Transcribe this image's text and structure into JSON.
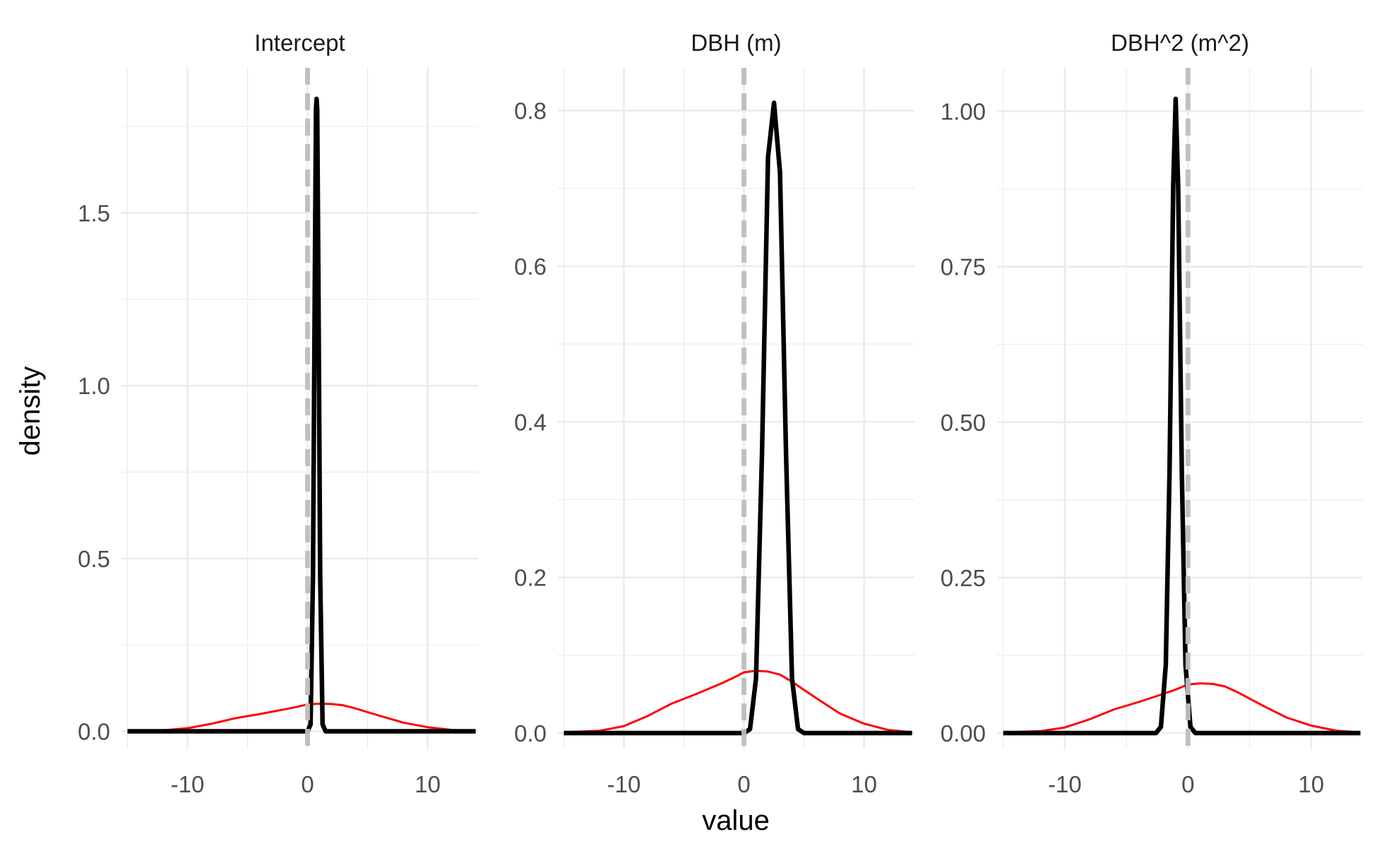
{
  "chart_data": {
    "type": "line",
    "xlabel": "value",
    "ylabel": "density",
    "colors": {
      "posterior": "#000000",
      "prior": "#ff0000",
      "reference_line": "#bebebe",
      "grid": "#ebebeb",
      "text": "#4d4d4d"
    },
    "facets": [
      {
        "title": "Intercept",
        "xlim": [
          -15.5,
          14.2
        ],
        "ylim": [
          -0.05,
          1.92
        ],
        "xticks": [
          -10,
          0,
          10
        ],
        "xtick_labels": [
          "-10",
          "0",
          "10"
        ],
        "yticks": [
          0.0,
          0.5,
          1.0,
          1.5
        ],
        "ytick_labels": [
          "0.0",
          "0.5",
          "1.0",
          "1.5"
        ],
        "vline": 0,
        "series": [
          {
            "role": "posterior",
            "x": [
              -15,
              0.0,
              0.25,
              0.45,
              0.6,
              0.7,
              0.75,
              0.8,
              0.9,
              1.05,
              1.25,
              1.5,
              14
            ],
            "y": [
              0,
              0,
              0.02,
              0.45,
              1.3,
              1.8,
              1.83,
              1.8,
              1.3,
              0.45,
              0.02,
              0,
              0
            ]
          },
          {
            "role": "prior",
            "x": [
              -15,
              -12,
              -10,
              -8,
              -6,
              -4,
              -2,
              -1,
              0,
              1,
              2,
              3,
              4,
              6,
              8,
              10,
              12,
              14
            ],
            "y": [
              0.001,
              0.003,
              0.009,
              0.022,
              0.038,
              0.05,
              0.063,
              0.07,
              0.078,
              0.08,
              0.079,
              0.075,
              0.066,
              0.045,
              0.025,
              0.012,
              0.004,
              0.001
            ]
          }
        ]
      },
      {
        "title": "DBH (m)",
        "xlim": [
          -15.5,
          14.2
        ],
        "ylim": [
          -0.02,
          0.855
        ],
        "xticks": [
          -10,
          0,
          10
        ],
        "xtick_labels": [
          "-10",
          "0",
          "10"
        ],
        "yticks": [
          0.0,
          0.2,
          0.4,
          0.6,
          0.8
        ],
        "ytick_labels": [
          "0.0",
          "0.2",
          "0.4",
          "0.6",
          "0.8"
        ],
        "vline": 0,
        "series": [
          {
            "role": "posterior",
            "x": [
              -15,
              0.0,
              0.5,
              1.0,
              1.5,
              2.0,
              2.5,
              3.0,
              3.5,
              4.0,
              4.5,
              5.0,
              14
            ],
            "y": [
              0,
              0,
              0.005,
              0.07,
              0.36,
              0.74,
              0.81,
              0.72,
              0.36,
              0.07,
              0.005,
              0,
              0
            ]
          },
          {
            "role": "prior",
            "x": [
              -15,
              -12,
              -10,
              -8,
              -6,
              -4,
              -2,
              -1,
              0,
              1,
              2,
              3,
              4,
              6,
              8,
              10,
              12,
              14
            ],
            "y": [
              0.001,
              0.003,
              0.009,
              0.022,
              0.038,
              0.05,
              0.063,
              0.07,
              0.078,
              0.08,
              0.079,
              0.075,
              0.066,
              0.045,
              0.025,
              0.012,
              0.004,
              0.001
            ]
          }
        ]
      },
      {
        "title": "DBH^2 (m^2)",
        "xlim": [
          -15.5,
          14.2
        ],
        "ylim": [
          -0.025,
          1.07
        ],
        "xticks": [
          -10,
          0,
          10
        ],
        "xtick_labels": [
          "-10",
          "0",
          "10"
        ],
        "yticks": [
          0.0,
          0.25,
          0.5,
          0.75,
          1.0
        ],
        "ytick_labels": [
          "0.00",
          "0.25",
          "0.50",
          "0.75",
          "1.00"
        ],
        "vline": 0,
        "series": [
          {
            "role": "posterior",
            "x": [
              -15,
              -2.6,
              -2.2,
              -1.8,
              -1.5,
              -1.2,
              -1.0,
              -0.8,
              -0.5,
              -0.2,
              0.2,
              0.6,
              14
            ],
            "y": [
              0,
              0,
              0.01,
              0.11,
              0.42,
              0.88,
              1.02,
              0.88,
              0.42,
              0.11,
              0.01,
              0,
              0
            ]
          },
          {
            "role": "prior",
            "x": [
              -15,
              -12,
              -10,
              -8,
              -6,
              -4,
              -2,
              -1,
              0,
              1,
              2,
              3,
              4,
              6,
              8,
              10,
              12,
              14
            ],
            "y": [
              0.001,
              0.003,
              0.009,
              0.022,
              0.038,
              0.05,
              0.063,
              0.07,
              0.078,
              0.08,
              0.079,
              0.075,
              0.066,
              0.045,
              0.025,
              0.012,
              0.004,
              0.001
            ]
          }
        ]
      }
    ]
  }
}
